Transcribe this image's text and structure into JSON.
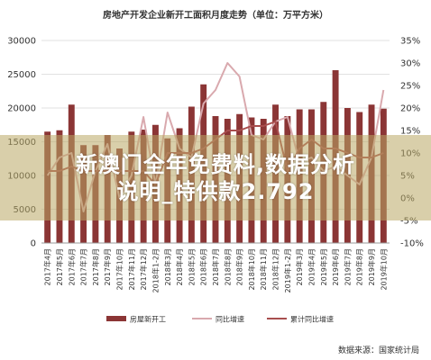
{
  "chart_data": {
    "type": "bar",
    "title": "房地产开发企业新开工面积月度走势（单位：万平方米）",
    "source": "数据来源：国家统计局",
    "categories": [
      "2017年4月",
      "2017年5月",
      "2017年6月",
      "2017年7月",
      "2017年8月",
      "2017年9月",
      "2017年10月",
      "2017年11月",
      "2017年12月",
      "2018年1-2月",
      "2018年3月",
      "2018年4月",
      "2018年5月",
      "2018年6月",
      "2018年7月",
      "2018年8月",
      "2018年9月",
      "2018年10月",
      "2018年11月",
      "2018年12月",
      "2019年1-2月",
      "2019年3月",
      "2019年4月",
      "2019年5月",
      "2019年6月",
      "2019年7月",
      "2019年8月",
      "2019年9月",
      "2019年10月"
    ],
    "ylim_left": [
      0,
      30000
    ],
    "yticks_left": [
      0,
      5000,
      10000,
      15000,
      20000,
      25000,
      30000
    ],
    "ylim_right": [
      -10,
      35
    ],
    "yticks_right": [
      "-10%",
      "-5%",
      "0%",
      "5%",
      "10%",
      "15%",
      "20%",
      "25%",
      "30%",
      "35%"
    ],
    "series": [
      {
        "name": "房屋新开工",
        "axis": "left",
        "type": "bar",
        "color": "#8b3535",
        "values": [
          16500,
          16700,
          20500,
          14500,
          14500,
          16000,
          14000,
          16500,
          16800,
          17500,
          15500,
          17000,
          20200,
          23500,
          18800,
          18400,
          19100,
          18600,
          18400,
          20500,
          18800,
          19800,
          19800,
          20900,
          25600,
          20000,
          19400,
          20500,
          19900
        ]
      },
      {
        "name": "同比增速",
        "axis": "right",
        "type": "line",
        "color": "#d9a9ae",
        "values": [
          5,
          9,
          10,
          -3,
          6,
          12,
          0,
          5,
          18,
          3,
          19,
          11,
          9,
          21,
          24,
          30,
          27,
          14,
          13,
          17,
          18,
          8,
          9,
          6,
          7,
          5,
          3,
          9,
          24
        ]
      },
      {
        "name": "累计同比增速",
        "axis": "right",
        "type": "line",
        "color": "#a84e4e",
        "values": [
          6,
          6,
          7,
          6,
          6,
          6,
          6,
          6,
          6,
          3,
          10,
          10,
          10,
          11,
          13,
          15,
          15,
          16,
          16,
          17,
          6,
          11,
          13,
          11,
          11,
          10,
          9,
          9,
          10
        ]
      }
    ],
    "legend_position": "bottom",
    "grid": true
  },
  "overlay": {
    "line1": "新澳门全年免费料,数据分析",
    "line2": "说明_特供款2.792"
  }
}
